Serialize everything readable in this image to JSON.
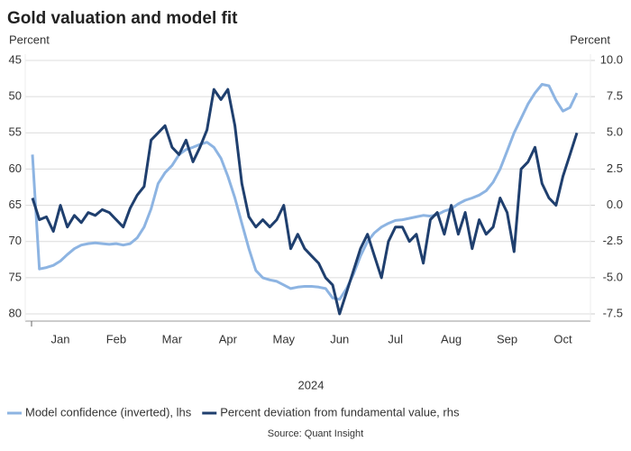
{
  "chart_data": {
    "type": "line",
    "title": "Gold valuation and model fit",
    "ylabel": "Percent",
    "y2label": "Percent",
    "xlabel": "2024",
    "source": "Source: Quant Insight",
    "categories": [
      null,
      null,
      null,
      null,
      "Jan",
      null,
      null,
      null,
      null,
      null,
      null,
      null,
      "Feb",
      null,
      null,
      null,
      null,
      null,
      null,
      null,
      "Mar",
      null,
      null,
      null,
      null,
      null,
      null,
      null,
      "Apr",
      null,
      null,
      null,
      null,
      null,
      null,
      null,
      "May",
      null,
      null,
      null,
      null,
      null,
      null,
      null,
      "Jun",
      null,
      null,
      null,
      null,
      null,
      null,
      null,
      "Jul",
      null,
      null,
      null,
      null,
      null,
      null,
      null,
      "Aug",
      null,
      null,
      null,
      null,
      null,
      null,
      null,
      "Sep",
      null,
      null,
      null,
      null,
      null,
      null,
      null,
      "Oct",
      null,
      null
    ],
    "ylim": [
      45,
      80
    ],
    "y_inverted": true,
    "yticks": [
      45,
      50,
      55,
      60,
      65,
      70,
      75,
      80
    ],
    "y2lim": [
      -7.5,
      10
    ],
    "y2ticks": [
      {
        "value": 10,
        "label": "10.0"
      },
      7.5,
      {
        "value": 5,
        "label": "5.0"
      },
      2.5,
      {
        "value": 0,
        "label": "0.0"
      },
      -2.5,
      {
        "value": -5,
        "label": "-5.0"
      },
      -7.5
    ],
    "grid": true,
    "legend": "bottom",
    "series": [
      {
        "name": "Model confidence (inverted), lhs",
        "color": "#8db4e2",
        "axis": "y",
        "values": [
          58,
          73.8,
          73.6,
          73.3,
          72.7,
          71.8,
          71.0,
          70.5,
          70.3,
          70.2,
          70.3,
          70.4,
          70.3,
          70.5,
          70.3,
          69.5,
          68,
          65.5,
          62,
          60.5,
          59.5,
          58,
          57.3,
          57,
          56.6,
          56.3,
          57,
          58.5,
          61,
          64,
          67.5,
          71,
          74,
          75,
          75.3,
          75.5,
          76,
          76.5,
          76.3,
          76.2,
          76.2,
          76.3,
          76.5,
          77.8,
          78,
          76.5,
          74.5,
          72,
          70,
          68.8,
          68,
          67.5,
          67.1,
          67,
          66.8,
          66.6,
          66.4,
          66.5,
          66.3,
          65.8,
          65.5,
          64.8,
          64.3,
          64,
          63.6,
          63,
          61.8,
          60,
          57.5,
          55,
          53,
          51,
          49.5,
          48.3,
          48.5,
          50.5,
          52,
          51.5,
          49.5
        ]
      },
      {
        "name": "Percent deviation from fundamental value, rhs",
        "color": "#1f3f6e",
        "axis": "y2",
        "values": [
          0.5,
          -1.0,
          -0.8,
          -1.8,
          0.0,
          -1.5,
          -0.7,
          -1.2,
          -0.5,
          -0.7,
          -0.3,
          -0.5,
          -1.0,
          -1.5,
          -0.2,
          0.7,
          1.3,
          4.5,
          5.0,
          5.5,
          4.0,
          3.5,
          4.5,
          3.0,
          4.0,
          5.2,
          8.0,
          7.3,
          8.0,
          5.5,
          1.5,
          -0.8,
          -1.5,
          -1.0,
          -1.5,
          -1.0,
          0.0,
          -3.0,
          -2.0,
          -3.0,
          -3.5,
          -4.0,
          -5.0,
          -5.5,
          -7.5,
          -6.0,
          -4.5,
          -3.0,
          -2.0,
          -3.5,
          -5.0,
          -2.5,
          -1.5,
          -1.5,
          -2.5,
          -2.0,
          -4.0,
          -1.0,
          -0.5,
          -2.0,
          0.0,
          -2.0,
          -0.5,
          -3.0,
          -1.0,
          -2.0,
          -1.5,
          0.5,
          -0.5,
          -3.2,
          2.5,
          3.0,
          4.0,
          1.5,
          0.5,
          0.0,
          2.0,
          3.5,
          5.0
        ]
      }
    ]
  }
}
